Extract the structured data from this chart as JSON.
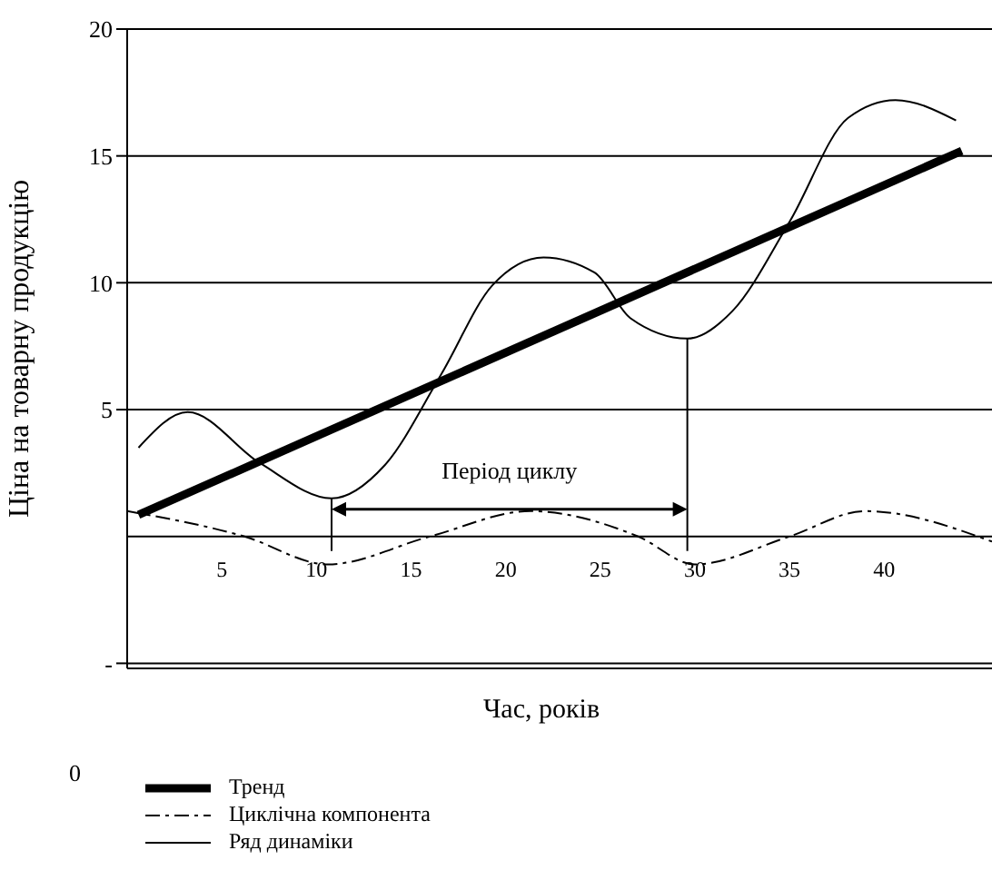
{
  "chart_data": {
    "type": "line",
    "xlabel": "Час, років",
    "ylabel": "Ціна на товарну продукцію",
    "xlim": [
      0,
      45.7
    ],
    "xticks": [
      5,
      10,
      15,
      20,
      25,
      30,
      35,
      40
    ],
    "ylim": [
      -5.2,
      20
    ],
    "yticks": [
      {
        "value": -5,
        "label": "-"
      },
      5,
      10,
      15,
      20
    ],
    "grid": "y",
    "legend": "bottom",
    "marker": "none",
    "series": [
      {
        "name": "Тренд",
        "color": "#000000",
        "line_style": "solid",
        "x": [
          0.6,
          44.1
        ],
        "values": [
          0.85,
          15.2
        ]
      },
      {
        "name": "Циклічна компонента",
        "color": "#000000",
        "line_style": "dashed",
        "x": [
          0,
          6.2,
          10.6,
          16,
          21.3,
          27,
          30,
          35,
          39,
          45.7
        ],
        "values": [
          1,
          0,
          -1.1,
          0,
          1,
          0,
          -1.1,
          0,
          1,
          -0.2
        ]
      },
      {
        "name": "Ряд динаміки",
        "color": "#000000",
        "line_style": "solid",
        "x": [
          0.6,
          3.2,
          7,
          10.8,
          13.6,
          16.6,
          19.3,
          22,
          24.7,
          26.6,
          29.6,
          32,
          35,
          38.1,
          40.6,
          43.8
        ],
        "values": [
          3.5,
          4.9,
          2.9,
          1.5,
          2.8,
          6.4,
          9.9,
          11,
          10.4,
          8.6,
          7.8,
          8.9,
          12.4,
          16.5,
          17.2,
          16.4
        ]
      }
    ],
    "annotations": [
      "Період циклу",
      "0"
    ]
  }
}
